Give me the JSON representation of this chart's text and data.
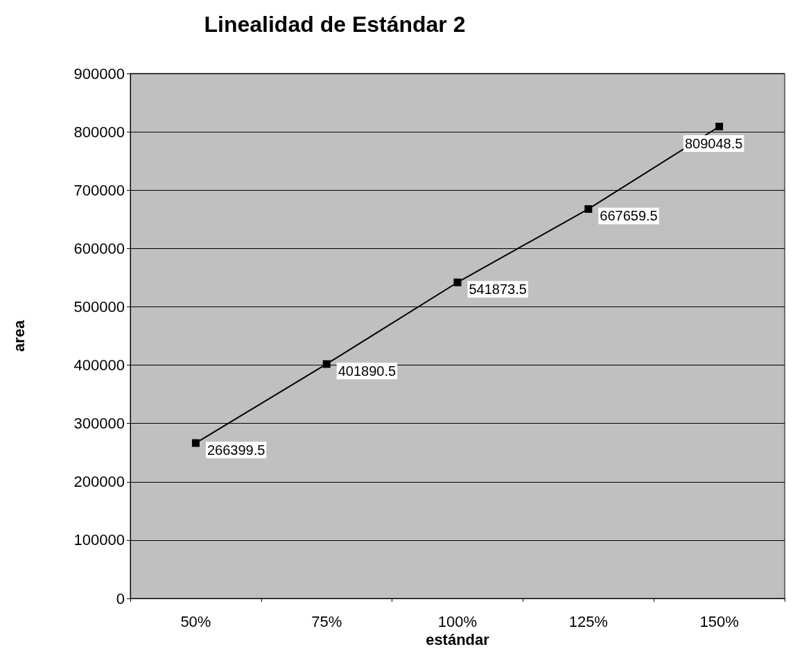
{
  "chart_data": {
    "type": "line",
    "title": "Linealidad de Estándar 2",
    "xlabel": "estándar",
    "ylabel": "area",
    "categories": [
      "50%",
      "75%",
      "100%",
      "125%",
      "150%"
    ],
    "series": [
      {
        "color": "#000000",
        "values": [
          266399.5,
          401890.5,
          541873.5,
          667659.5,
          809048.5
        ]
      }
    ],
    "ylim": [
      0,
      900000
    ],
    "yticks": [
      0,
      100000,
      200000,
      300000,
      400000,
      500000,
      600000,
      700000,
      800000,
      900000
    ],
    "grid": "y",
    "marker": "square",
    "line_style": "solid",
    "data_labels": true
  }
}
